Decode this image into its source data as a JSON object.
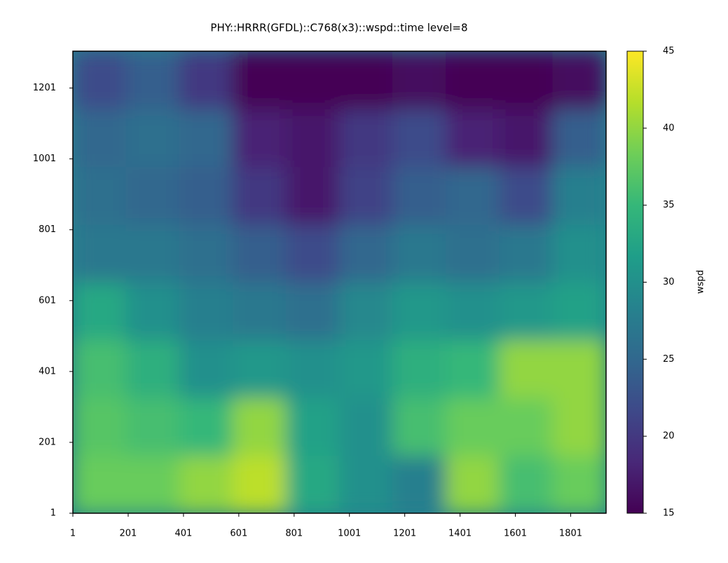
{
  "chart_data": {
    "type": "heatmap",
    "title": "PHY::HRRR(GFDL)::C768(x3)::wspd::time level=8",
    "xlim": [
      1,
      1929
    ],
    "ylim": [
      1,
      1305
    ],
    "xticks": [
      1,
      201,
      401,
      601,
      801,
      1001,
      1201,
      1401,
      1601,
      1801
    ],
    "yticks": [
      1,
      201,
      401,
      601,
      801,
      1001,
      1201
    ],
    "z": [
      [
        38,
        38,
        40,
        42,
        33,
        30,
        28,
        40,
        36,
        38
      ],
      [
        37,
        36,
        35,
        40,
        32,
        30,
        36,
        38,
        38,
        40
      ],
      [
        36,
        34,
        30,
        31,
        30,
        31,
        34,
        35,
        40,
        40
      ],
      [
        33,
        30,
        28,
        27,
        26,
        29,
        31,
        30,
        31,
        32
      ],
      [
        27,
        27,
        26,
        24,
        22,
        25,
        27,
        26,
        27,
        30
      ],
      [
        26,
        25,
        24,
        20,
        17,
        21,
        24,
        25,
        22,
        28
      ],
      [
        25,
        26,
        25,
        18,
        17,
        20,
        22,
        18,
        17,
        24
      ],
      [
        22,
        24,
        20,
        15,
        15,
        15,
        16,
        15,
        15,
        16
      ]
    ],
    "zlim": [
      15,
      45
    ],
    "zticks": [
      15,
      20,
      25,
      30,
      35,
      40,
      45
    ],
    "colorbar_label": "wspd",
    "colormap": [
      "#440154",
      "#482878",
      "#3e4989",
      "#31688e",
      "#26828e",
      "#1f9e89",
      "#35b779",
      "#6ece58",
      "#b5de2b",
      "#fde725"
    ]
  }
}
